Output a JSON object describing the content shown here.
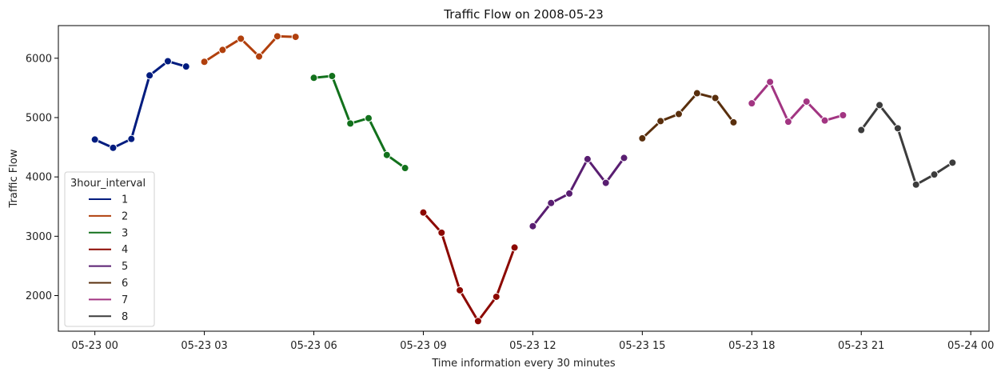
{
  "chart_data": {
    "type": "line",
    "title": "Traffic Flow on 2008-05-23",
    "xlabel": "Time information every 30 minutes",
    "ylabel": "Traffic Flow",
    "x_unit": "datetime",
    "xlim": [
      "2008-05-22 23:00",
      "2008-05-24 00:30"
    ],
    "ylim": [
      1400,
      6550
    ],
    "x_ticks": [
      "2008-05-23 00:00",
      "2008-05-23 03:00",
      "2008-05-23 06:00",
      "2008-05-23 09:00",
      "2008-05-23 12:00",
      "2008-05-23 15:00",
      "2008-05-23 18:00",
      "2008-05-23 21:00",
      "2008-05-24 00:00"
    ],
    "x_tick_labels": [
      "05-23 00",
      "05-23 03",
      "05-23 06",
      "05-23 09",
      "05-23 12",
      "05-23 15",
      "05-23 18",
      "05-23 21",
      "05-24 00"
    ],
    "y_ticks": [
      2000,
      3000,
      4000,
      5000,
      6000
    ],
    "y_tick_labels": [
      "2000",
      "3000",
      "4000",
      "5000",
      "6000"
    ],
    "grid": false,
    "legend": {
      "title": "3hour_interval",
      "placement": "lower-left"
    },
    "series": [
      {
        "name": "1",
        "color": "#001c7f",
        "x": [
          "2008-05-23 00:00",
          "2008-05-23 00:30",
          "2008-05-23 01:00",
          "2008-05-23 01:30",
          "2008-05-23 02:00",
          "2008-05-23 02:30"
        ],
        "y": [
          4630,
          4490,
          4640,
          5710,
          5950,
          5860
        ]
      },
      {
        "name": "2",
        "color": "#b1400d",
        "x": [
          "2008-05-23 03:00",
          "2008-05-23 03:30",
          "2008-05-23 04:00",
          "2008-05-23 04:30",
          "2008-05-23 05:00",
          "2008-05-23 05:30"
        ],
        "y": [
          5940,
          6140,
          6330,
          6030,
          6370,
          6360
        ]
      },
      {
        "name": "3",
        "color": "#12711c",
        "x": [
          "2008-05-23 06:00",
          "2008-05-23 06:30",
          "2008-05-23 07:00",
          "2008-05-23 07:30",
          "2008-05-23 08:00",
          "2008-05-23 08:30"
        ],
        "y": [
          5670,
          5700,
          4900,
          4990,
          4370,
          4150
        ]
      },
      {
        "name": "4",
        "color": "#8c0800",
        "x": [
          "2008-05-23 09:00",
          "2008-05-23 09:30",
          "2008-05-23 10:00",
          "2008-05-23 10:30",
          "2008-05-23 11:00",
          "2008-05-23 11:30"
        ],
        "y": [
          3400,
          3060,
          2090,
          1570,
          1980,
          2810
        ]
      },
      {
        "name": "5",
        "color": "#591e71",
        "x": [
          "2008-05-23 12:00",
          "2008-05-23 12:30",
          "2008-05-23 13:00",
          "2008-05-23 13:30",
          "2008-05-23 14:00",
          "2008-05-23 14:30"
        ],
        "y": [
          3170,
          3560,
          3720,
          4300,
          3900,
          4320
        ]
      },
      {
        "name": "6",
        "color": "#592f0d",
        "x": [
          "2008-05-23 15:00",
          "2008-05-23 15:30",
          "2008-05-23 16:00",
          "2008-05-23 16:30",
          "2008-05-23 17:00",
          "2008-05-23 17:30"
        ],
        "y": [
          4650,
          4940,
          5060,
          5410,
          5330,
          4920
        ]
      },
      {
        "name": "7",
        "color": "#a23582",
        "x": [
          "2008-05-23 18:00",
          "2008-05-23 18:30",
          "2008-05-23 19:00",
          "2008-05-23 19:30",
          "2008-05-23 20:00",
          "2008-05-23 20:30"
        ],
        "y": [
          5240,
          5600,
          4930,
          5270,
          4950,
          5040
        ]
      },
      {
        "name": "8",
        "color": "#3c3c3c",
        "x": [
          "2008-05-23 21:00",
          "2008-05-23 21:30",
          "2008-05-23 22:00",
          "2008-05-23 22:30",
          "2008-05-23 23:00",
          "2008-05-23 23:30"
        ],
        "y": [
          4790,
          5210,
          4820,
          3870,
          4040,
          4240
        ]
      }
    ]
  }
}
